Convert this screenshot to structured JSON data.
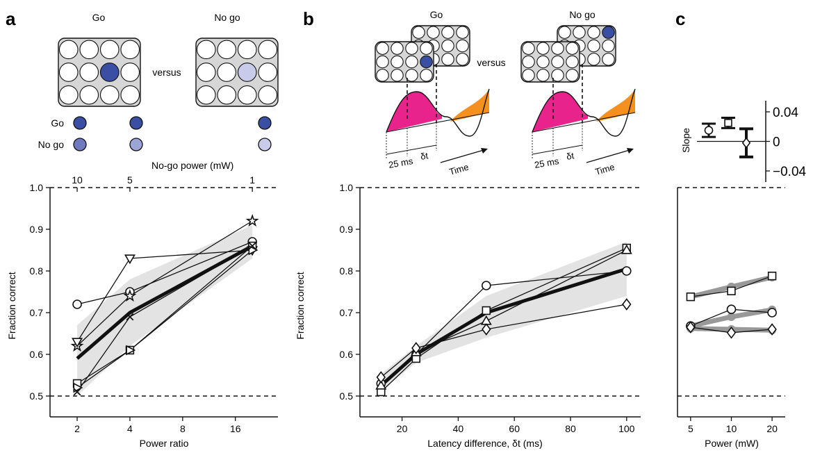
{
  "panel_labels": {
    "a": "a",
    "b": "b",
    "c": "c"
  },
  "schematic_a": {
    "go_label": "Go",
    "nogo_label": "No go",
    "versus": "versus",
    "legend_go": "Go",
    "legend_nogo": "No go",
    "nogo_power_caption": "No-go power (mW)",
    "top_ticks": [
      "10",
      "5",
      "1"
    ]
  },
  "schematic_b": {
    "go_label": "Go",
    "nogo_label": "No go",
    "versus": "versus",
    "delay_label": "25 ms",
    "dt_label": "δt",
    "time_label": "Time"
  },
  "colors": {
    "go_blue": "#3a4fa3",
    "nogo_mid": "#6e79c0",
    "nogo_light": "#9da4d6",
    "nogo_pale": "#c8cbea",
    "magenta": "#e8248c",
    "orange": "#f5901e",
    "band_gray": "#e3e3e4",
    "plate_gray": "#d6d6d6"
  },
  "chart_data": [
    {
      "type": "line",
      "panel": "a",
      "xlabel": "Power ratio",
      "ylabel": "Fraction correct",
      "x_scale": "log2",
      "xlim": [
        1.4,
        28
      ],
      "ylim": [
        0.45,
        1.0
      ],
      "x_ticks": [
        2,
        4,
        8,
        16
      ],
      "y_ticks": [
        "0.5",
        "0.6",
        "0.7",
        "0.8",
        "0.9",
        "1.0"
      ],
      "chance_line": 0.5,
      "ceiling_line": 1.0,
      "band": {
        "x": [
          2,
          4,
          20
        ],
        "lower": [
          0.5,
          0.62,
          0.83
        ],
        "upper": [
          0.67,
          0.78,
          0.91
        ]
      },
      "mean": {
        "x": [
          2,
          4,
          20
        ],
        "y": [
          0.59,
          0.7,
          0.86
        ]
      },
      "series": [
        {
          "marker": "circle",
          "x": [
            2,
            4,
            20
          ],
          "y": [
            0.72,
            0.75,
            0.87
          ]
        },
        {
          "marker": "star",
          "x": [
            2,
            4,
            20
          ],
          "y": [
            0.62,
            0.74,
            0.92
          ]
        },
        {
          "marker": "triangle-down",
          "x": [
            2,
            4,
            20
          ],
          "y": [
            0.63,
            0.83,
            0.85
          ]
        },
        {
          "marker": "square",
          "x": [
            2,
            4,
            20
          ],
          "y": [
            0.53,
            0.61,
            0.86
          ]
        },
        {
          "marker": "triangle-right",
          "x": [
            2,
            4,
            20
          ],
          "y": [
            0.52,
            0.61,
            0.85
          ]
        },
        {
          "marker": "x",
          "x": [
            2,
            4,
            20
          ],
          "y": [
            0.51,
            0.69,
            0.86
          ]
        }
      ]
    },
    {
      "type": "line",
      "panel": "b",
      "xlabel": "Latency difference, δt (ms)",
      "ylabel": "Fraction correct",
      "xlim": [
        5,
        105
      ],
      "ylim": [
        0.45,
        1.0
      ],
      "x_ticks": [
        20,
        40,
        60,
        80,
        100
      ],
      "y_ticks": [
        "0.5",
        "0.6",
        "0.7",
        "0.8",
        "0.9",
        "1.0"
      ],
      "chance_line": 0.5,
      "ceiling_line": 1.0,
      "band": {
        "x": [
          12,
          25,
          50,
          100
        ],
        "lower": [
          0.51,
          0.58,
          0.64,
          0.74
        ],
        "upper": [
          0.55,
          0.62,
          0.74,
          0.87
        ]
      },
      "mean": {
        "x": [
          12.5,
          25,
          50,
          100
        ],
        "y": [
          0.525,
          0.6,
          0.7,
          0.805
        ]
      },
      "series": [
        {
          "marker": "circle",
          "x": [
            12.5,
            25,
            50,
            100
          ],
          "y": [
            0.53,
            0.6,
            0.765,
            0.8
          ]
        },
        {
          "marker": "square",
          "x": [
            12.5,
            25,
            50,
            100
          ],
          "y": [
            0.51,
            0.59,
            0.705,
            0.855
          ]
        },
        {
          "marker": "triangle-up",
          "x": [
            12.5,
            25,
            50,
            100
          ],
          "y": [
            0.525,
            0.605,
            0.68,
            0.85
          ]
        },
        {
          "marker": "diamond",
          "x": [
            12.5,
            25,
            50,
            100
          ],
          "y": [
            0.545,
            0.615,
            0.66,
            0.72
          ]
        }
      ]
    },
    {
      "type": "line",
      "panel": "c",
      "xlabel": "Power (mW)",
      "x_scale": "log",
      "xlim": [
        4,
        25
      ],
      "ylim": [
        0.45,
        1.0
      ],
      "x_ticks": [
        5,
        10,
        20
      ],
      "chance_line": 0.5,
      "ceiling_line": 1.0,
      "series": [
        {
          "marker": "square",
          "x": [
            5,
            10,
            20
          ],
          "y": [
            0.738,
            0.752,
            0.788
          ],
          "fit": [
            0.738,
            0.762,
            0.785
          ]
        },
        {
          "marker": "circle",
          "x": [
            5,
            10,
            20
          ],
          "y": [
            0.668,
            0.708,
            0.7
          ],
          "fit": [
            0.668,
            0.69,
            0.707
          ]
        },
        {
          "marker": "diamond",
          "x": [
            5,
            10,
            20
          ],
          "y": [
            0.665,
            0.652,
            0.66
          ],
          "fit": [
            0.662,
            0.66,
            0.658
          ]
        }
      ]
    },
    {
      "type": "scatter",
      "panel": "c-inset",
      "ylabel": "Slope",
      "ylim": [
        -0.055,
        0.055
      ],
      "y_ticks": [
        "−0.04",
        "0",
        "0.04"
      ],
      "points": [
        {
          "marker": "circle",
          "y": 0.015,
          "err": 0.009
        },
        {
          "marker": "square",
          "y": 0.025,
          "err": 0.007
        },
        {
          "marker": "diamond",
          "y": -0.002,
          "err": 0.019
        }
      ]
    }
  ]
}
